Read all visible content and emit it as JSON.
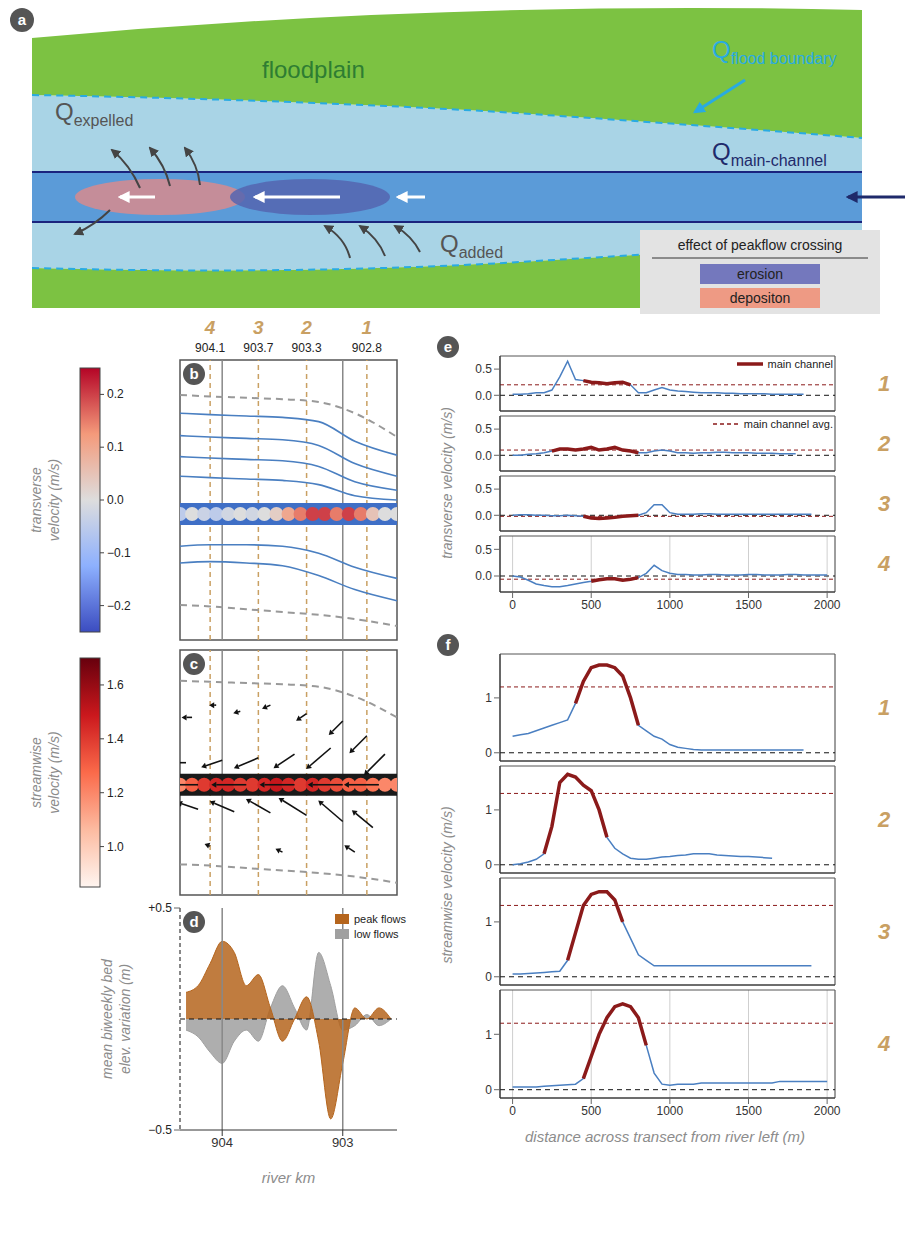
{
  "panel_a": {
    "panel": "a",
    "floodplain_label": "floodplain",
    "q_flood_boundary": {
      "symbol": "Q",
      "subscript": "flood boundary"
    },
    "q_main_channel": {
      "symbol": "Q",
      "subscript": "main-channel"
    },
    "q_expelled": {
      "symbol": "Q",
      "subscript": "expelled"
    },
    "q_added": {
      "symbol": "Q",
      "subscript": "added"
    },
    "legend_box": {
      "title": "effect of peakflow crossing",
      "items": [
        {
          "label": "erosion",
          "color": "#7478bd"
        },
        {
          "label": "depositon",
          "color": "#ee9a84"
        }
      ]
    }
  },
  "chart_data": [
    {
      "panel": "b",
      "type": "map",
      "colorbar_label": "transverse velocity (m/s)",
      "colorbar_range": [
        -0.25,
        0.25
      ],
      "colorbar_ticks": [
        {
          "value": -0.2,
          "label": "−0.2"
        },
        {
          "value": -0.1,
          "label": "−0.1"
        },
        {
          "value": 0,
          "label": "0.0"
        },
        0.1,
        0.2
      ],
      "xlim": [
        904.35,
        902.55
      ],
      "ylim": [
        -1000,
        1000
      ],
      "xticks": [
        904,
        903
      ],
      "tick_labels": false,
      "transects": [
        {
          "label": "4",
          "river_km": 904.1
        },
        {
          "label": "3",
          "river_km": 903.7
        },
        {
          "label": "2",
          "river_km": 903.3
        },
        {
          "label": "1",
          "river_km": 902.8
        }
      ],
      "flood_boundary_x": [
        904.35,
        904.1,
        903.8,
        903.5,
        903.2,
        902.9,
        902.55
      ],
      "flood_boundary_upper": [
        750,
        740,
        730,
        720,
        700,
        620,
        450
      ],
      "flood_boundary_lower": [
        -750,
        -760,
        -780,
        -800,
        -820,
        -850,
        -900
      ],
      "streamline_x": [
        904.35,
        904.1,
        903.8,
        903.5,
        903.2,
        902.9,
        902.55
      ],
      "streamlines": [
        [
          620,
          610,
          600,
          590,
          560,
          420,
          320
        ],
        [
          460,
          450,
          440,
          430,
          390,
          260,
          170
        ],
        [
          310,
          300,
          290,
          280,
          240,
          130,
          70
        ],
        [
          170,
          160,
          150,
          140,
          110,
          30,
          0
        ],
        [
          -330,
          -320,
          -320,
          -330,
          -380,
          -480,
          -560
        ],
        [
          -450,
          -440,
          -450,
          -470,
          -540,
          -640,
          -720
        ]
      ],
      "channel": {
        "y": -100,
        "x": [
          904.35,
          904.25,
          904.15,
          904.05,
          903.95,
          903.85,
          903.75,
          903.65,
          903.55,
          903.45,
          903.35,
          903.25,
          903.15,
          903.05,
          902.95,
          902.85,
          902.75,
          902.65,
          902.55
        ],
        "transverse_velocity": [
          -0.05,
          0.0,
          -0.03,
          -0.05,
          -0.02,
          0.0,
          -0.02,
          0.0,
          0.03,
          0.1,
          0.15,
          0.2,
          0.2,
          0.15,
          0.2,
          0.15,
          0.05,
          0.0,
          0.0
        ]
      }
    },
    {
      "panel": "c",
      "type": "map",
      "colorbar_label": "streamwise velocity (m/s)",
      "colorbar_range": [
        0.85,
        1.7
      ],
      "colorbar_ticks": [
        {
          "value": 1,
          "label": "1.0"
        },
        1.2,
        1.4,
        1.6
      ],
      "xlim": [
        904.35,
        902.55
      ],
      "ylim": [
        -1000,
        1000
      ],
      "xticks": [
        904,
        903
      ],
      "tick_labels": false,
      "transects_river_km": [
        904.1,
        903.7,
        903.3,
        902.8
      ],
      "flood_boundary_x": [
        904.35,
        904.1,
        903.8,
        903.5,
        903.2,
        902.9,
        902.55
      ],
      "flood_boundary_upper": [
        750,
        740,
        730,
        720,
        700,
        620,
        450
      ],
      "flood_boundary_lower": [
        -750,
        -760,
        -780,
        -800,
        -820,
        -850,
        -900
      ],
      "channel": {
        "y": -100,
        "x": [
          904.35,
          904.25,
          904.15,
          904.05,
          903.95,
          903.85,
          903.75,
          903.65,
          903.55,
          903.45,
          903.35,
          903.25,
          903.15,
          903.05,
          902.95,
          902.85,
          902.75,
          902.65,
          902.55
        ],
        "streamwise_velocity": [
          1.2,
          1.3,
          1.4,
          1.45,
          1.45,
          1.4,
          1.4,
          1.45,
          1.5,
          1.45,
          1.4,
          1.45,
          1.4,
          1.35,
          1.3,
          1.3,
          1.25,
          1.2,
          1.2
        ]
      },
      "vectors": [
        {
          "x": 904.25,
          "y": 450,
          "u": -0.15,
          "v": 0.0
        },
        {
          "x": 904.05,
          "y": 550,
          "u": -0.1,
          "v": 0.0
        },
        {
          "x": 903.85,
          "y": 500,
          "u": -0.1,
          "v": -0.03
        },
        {
          "x": 903.6,
          "y": 550,
          "u": -0.12,
          "v": -0.05
        },
        {
          "x": 903.3,
          "y": 480,
          "u": -0.15,
          "v": -0.1
        },
        {
          "x": 903.0,
          "y": 420,
          "u": -0.2,
          "v": -0.2
        },
        {
          "x": 902.8,
          "y": 300,
          "u": -0.25,
          "v": -0.25
        },
        {
          "x": 902.65,
          "y": 150,
          "u": -0.3,
          "v": -0.3
        },
        {
          "x": 903.1,
          "y": 200,
          "u": -0.35,
          "v": -0.3
        },
        {
          "x": 903.4,
          "y": 150,
          "u": -0.3,
          "v": -0.2
        },
        {
          "x": 903.7,
          "y": 120,
          "u": -0.35,
          "v": -0.15
        },
        {
          "x": 904.0,
          "y": 100,
          "u": -0.3,
          "v": -0.1
        },
        {
          "x": 904.3,
          "y": 80,
          "u": -0.3,
          "v": 0.0
        },
        {
          "x": 904.2,
          "y": -300,
          "u": -0.3,
          "v": 0.1
        },
        {
          "x": 903.9,
          "y": -320,
          "u": -0.35,
          "v": 0.15
        },
        {
          "x": 903.6,
          "y": -330,
          "u": -0.35,
          "v": 0.2
        },
        {
          "x": 903.3,
          "y": -350,
          "u": -0.4,
          "v": 0.25
        },
        {
          "x": 903.0,
          "y": -400,
          "u": -0.35,
          "v": 0.3
        },
        {
          "x": 902.75,
          "y": -450,
          "u": -0.3,
          "v": 0.25
        },
        {
          "x": 902.9,
          "y": -650,
          "u": -0.15,
          "v": 0.1
        },
        {
          "x": 903.5,
          "y": -650,
          "u": -0.1,
          "v": 0.05
        },
        {
          "x": 904.1,
          "y": -600,
          "u": -0.08,
          "v": 0.03
        },
        {
          "x": 904.2,
          "y": -100,
          "u": -0.5,
          "v": 0.0
        },
        {
          "x": 903.8,
          "y": -100,
          "u": -0.5,
          "v": 0.0
        },
        {
          "x": 903.4,
          "y": -100,
          "u": -0.5,
          "v": 0.0
        },
        {
          "x": 903.0,
          "y": -100,
          "u": -0.5,
          "v": 0.0
        },
        {
          "x": 902.7,
          "y": -100,
          "u": -0.5,
          "v": 0.0
        }
      ]
    },
    {
      "panel": "d",
      "type": "area",
      "ylabel": "mean biweekly bed elev. variation (m)",
      "xlabel": "river km",
      "xlim": [
        904.35,
        902.55
      ],
      "ylim": [
        -0.5,
        0.5
      ],
      "xticks": [
        904,
        903
      ],
      "yticks": [
        {
          "value": 0.5,
          "label": "+0.5"
        },
        {
          "value": -0.5,
          "label": "−0.5"
        }
      ],
      "legend": "upper right",
      "x": [
        904.3,
        904.2,
        904.1,
        904.0,
        903.9,
        903.8,
        903.7,
        903.6,
        903.5,
        903.4,
        903.3,
        903.2,
        903.1,
        903.0,
        902.9,
        902.8,
        902.7,
        902.6
      ],
      "series": [
        {
          "name": "peak flows",
          "color": "#b5651d",
          "values": [
            0.12,
            0.15,
            0.25,
            0.35,
            0.3,
            0.15,
            0.2,
            0.05,
            -0.1,
            0.0,
            0.1,
            -0.1,
            -0.45,
            -0.2,
            0.05,
            0.0,
            0.05,
            0.0
          ]
        },
        {
          "name": "low flows",
          "color": "#a0a0a0",
          "values": [
            -0.05,
            -0.08,
            -0.15,
            -0.2,
            -0.1,
            -0.05,
            -0.1,
            0.05,
            0.15,
            0.05,
            -0.05,
            0.3,
            0.15,
            -0.05,
            -0.03,
            0.02,
            -0.03,
            0.0
          ]
        }
      ]
    },
    {
      "panel": "e",
      "type": "line",
      "ylabel": "transverse velocity (m/s)",
      "xlim": [
        -80,
        2050
      ],
      "ylim": [
        -0.3,
        0.75
      ],
      "xticks": [
        0,
        500,
        1000,
        1500,
        2000
      ],
      "yticks": [
        {
          "value": 0,
          "label": "0.0"
        },
        {
          "value": 0.5,
          "label": "0.5"
        }
      ],
      "grid": true,
      "main_channel_label": "main channel",
      "avg_label": "main channel avg.",
      "x": [
        0,
        50,
        100,
        150,
        200,
        250,
        300,
        350,
        400,
        450,
        500,
        550,
        600,
        650,
        700,
        750,
        800,
        850,
        900,
        950,
        1000,
        1050,
        1100,
        1150,
        1200,
        1250,
        1300,
        1350,
        1400,
        1450,
        1500,
        1550,
        1600,
        1650,
        1700,
        1750,
        1800,
        1850,
        1900,
        1950,
        2000
      ],
      "transects": [
        {
          "label": "1",
          "main_channel": [
            450,
            750
          ],
          "main_channel_avg": 0.2,
          "values": [
            0.02,
            0.02,
            0.03,
            0.05,
            0.05,
            0.1,
            0.35,
            0.65,
            0.3,
            0.28,
            0.25,
            0.24,
            0.22,
            0.24,
            0.25,
            0.2,
            0.05,
            0.05,
            0.1,
            0.15,
            0.1,
            0.08,
            0.07,
            0.06,
            0.05,
            0.05,
            0.05,
            0.04,
            0.04,
            0.03,
            0.03,
            0.03,
            0.03,
            0.02,
            0.02,
            0.02,
            0.02,
            0.02,
            null,
            null,
            null
          ]
        },
        {
          "label": "2",
          "main_channel": [
            250,
            800
          ],
          "main_channel_avg": 0.1,
          "values": [
            0.0,
            0.0,
            0.02,
            0.03,
            0.05,
            0.08,
            0.12,
            0.12,
            0.1,
            0.12,
            0.15,
            0.1,
            0.12,
            0.15,
            0.1,
            0.08,
            0.05,
            0.05,
            0.08,
            0.1,
            0.08,
            0.05,
            0.05,
            0.04,
            0.05,
            0.05,
            0.06,
            0.06,
            0.05,
            0.05,
            0.05,
            0.04,
            0.04,
            0.04,
            0.03,
            0.03,
            0.03,
            null,
            null,
            null,
            null
          ]
        },
        {
          "label": "3",
          "main_channel": [
            450,
            800
          ],
          "main_channel_avg": -0.02,
          "values": [
            0.0,
            0.01,
            0.01,
            0.0,
            0.0,
            -0.01,
            -0.01,
            0.0,
            -0.01,
            -0.02,
            -0.05,
            -0.06,
            -0.05,
            -0.04,
            -0.02,
            -0.01,
            0.0,
            0.05,
            0.2,
            0.2,
            0.05,
            0.02,
            0.02,
            0.02,
            0.03,
            0.03,
            0.02,
            0.02,
            0.02,
            0.02,
            0.02,
            0.02,
            0.02,
            0.02,
            0.02,
            0.02,
            0.02,
            0.02,
            0.02,
            null,
            null
          ]
        },
        {
          "label": "4",
          "main_channel": [
            500,
            800
          ],
          "main_channel_avg": -0.06,
          "values": [
            0.0,
            -0.02,
            -0.08,
            -0.15,
            -0.18,
            -0.2,
            -0.2,
            -0.18,
            -0.15,
            -0.12,
            -0.1,
            -0.07,
            -0.05,
            -0.05,
            -0.08,
            -0.06,
            -0.03,
            0.05,
            0.2,
            0.1,
            0.05,
            0.03,
            0.03,
            0.02,
            0.02,
            0.03,
            0.03,
            0.02,
            0.02,
            0.02,
            0.03,
            0.03,
            0.02,
            0.02,
            0.02,
            0.03,
            0.03,
            0.02,
            0.02,
            0.02,
            0.02
          ]
        }
      ]
    },
    {
      "panel": "f",
      "type": "line",
      "ylabel": "streamwise velocity (m/s)",
      "xlabel": "distance across transect from river left (m)",
      "xlim": [
        -80,
        2050
      ],
      "ylim": [
        -0.15,
        1.8
      ],
      "xticks": [
        0,
        500,
        1000,
        1500,
        2000
      ],
      "yticks": [
        0,
        1
      ],
      "grid": true,
      "x": [
        0,
        50,
        100,
        150,
        200,
        250,
        300,
        350,
        400,
        450,
        500,
        550,
        600,
        650,
        700,
        750,
        800,
        850,
        900,
        950,
        1000,
        1050,
        1100,
        1150,
        1200,
        1250,
        1300,
        1350,
        1400,
        1450,
        1500,
        1550,
        1600,
        1650,
        1700,
        1750,
        1800,
        1850,
        1900,
        1950,
        2000
      ],
      "transects": [
        {
          "label": "1",
          "main_channel": [
            400,
            800
          ],
          "main_channel_avg": 1.2,
          "values": [
            0.3,
            0.33,
            0.35,
            0.4,
            0.45,
            0.5,
            0.55,
            0.6,
            0.9,
            1.3,
            1.55,
            1.6,
            1.6,
            1.55,
            1.4,
            1.0,
            0.5,
            0.4,
            0.3,
            0.25,
            0.15,
            0.1,
            0.08,
            0.06,
            0.05,
            0.05,
            0.05,
            0.05,
            0.05,
            0.05,
            0.05,
            0.05,
            0.05,
            0.05,
            0.05,
            0.05,
            0.05,
            0.05,
            null,
            null,
            null
          ]
        },
        {
          "label": "2",
          "main_channel": [
            200,
            600
          ],
          "main_channel_avg": 1.3,
          "values": [
            0.0,
            0.02,
            0.05,
            0.1,
            0.2,
            0.7,
            1.5,
            1.65,
            1.6,
            1.45,
            1.35,
            1.0,
            0.5,
            0.3,
            0.2,
            0.12,
            0.1,
            0.1,
            0.12,
            0.14,
            0.15,
            0.17,
            0.18,
            0.2,
            0.2,
            0.2,
            0.18,
            0.17,
            0.16,
            0.15,
            0.15,
            0.14,
            0.13,
            0.12,
            null,
            null,
            null,
            null,
            null,
            null,
            null
          ]
        },
        {
          "label": "3",
          "main_channel": [
            350,
            700
          ],
          "main_channel_avg": 1.3,
          "values": [
            0.05,
            0.05,
            0.06,
            0.07,
            0.08,
            0.09,
            0.1,
            0.3,
            0.8,
            1.3,
            1.5,
            1.55,
            1.55,
            1.4,
            1.0,
            0.7,
            0.4,
            0.3,
            0.2,
            0.2,
            0.2,
            0.2,
            0.2,
            0.2,
            0.2,
            0.2,
            0.2,
            0.2,
            0.2,
            0.2,
            0.2,
            0.2,
            0.2,
            0.2,
            0.2,
            0.2,
            0.2,
            0.2,
            0.2,
            null,
            null
          ]
        },
        {
          "label": "4",
          "main_channel": [
            450,
            850
          ],
          "main_channel_avg": 1.2,
          "values": [
            0.05,
            0.05,
            0.05,
            0.05,
            0.06,
            0.07,
            0.08,
            0.09,
            0.1,
            0.2,
            0.6,
            1.0,
            1.3,
            1.5,
            1.55,
            1.5,
            1.3,
            0.8,
            0.3,
            0.1,
            0.08,
            0.1,
            0.1,
            0.1,
            0.12,
            0.12,
            0.12,
            0.12,
            0.12,
            0.12,
            0.12,
            0.12,
            0.12,
            0.12,
            0.15,
            0.15,
            0.15,
            0.15,
            0.15,
            0.15,
            0.15
          ]
        }
      ]
    }
  ]
}
